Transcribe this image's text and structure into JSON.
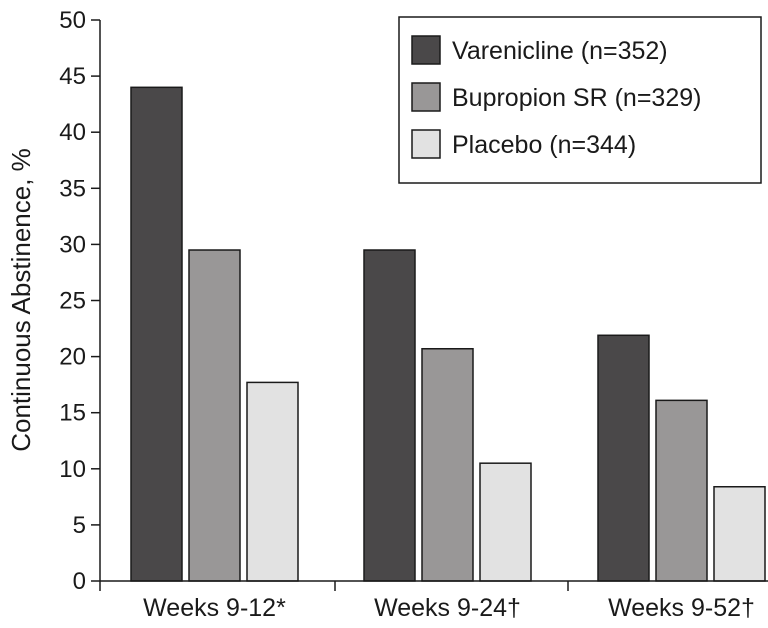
{
  "chart_data": {
    "type": "bar",
    "title": "",
    "xlabel": "",
    "ylabel": "Continuous Abstinence, %",
    "ylim": [
      0,
      50
    ],
    "yticks": [
      0,
      5,
      10,
      15,
      20,
      25,
      30,
      35,
      40,
      45,
      50
    ],
    "grid": false,
    "legend_position": "top-right",
    "categories": [
      "Weeks 9-12*",
      "Weeks 9-24†",
      "Weeks 9-52†"
    ],
    "series": [
      {
        "name": "Varenicline (n=352)",
        "color": "#4a4849",
        "values": [
          44.0,
          29.5,
          21.9
        ]
      },
      {
        "name": "Bupropion SR (n=329)",
        "color": "#999797",
        "values": [
          29.5,
          20.7,
          16.1
        ]
      },
      {
        "name": "Placebo (n=344)",
        "color": "#e2e2e2",
        "values": [
          17.7,
          10.5,
          8.4
        ]
      }
    ]
  }
}
